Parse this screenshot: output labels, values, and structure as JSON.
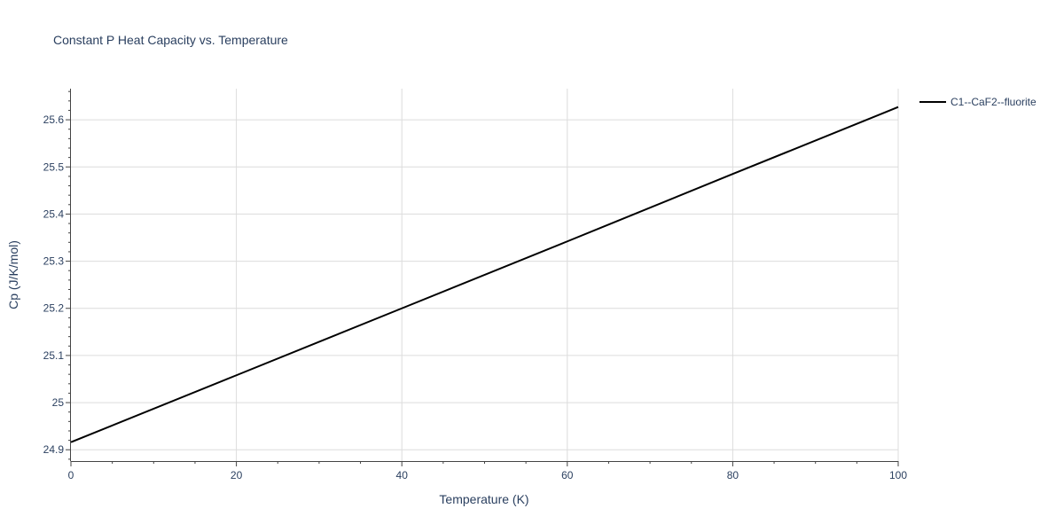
{
  "chart_data": {
    "type": "line",
    "title": "Constant P Heat Capacity vs. Temperature",
    "xlabel": "Temperature (K)",
    "ylabel": "Cp (J/K/mol)",
    "xlim": [
      0,
      100
    ],
    "ylim": [
      24.876,
      25.666
    ],
    "x_ticks": [
      0,
      20,
      40,
      60,
      80,
      100
    ],
    "x_tick_labels": [
      "0",
      "20",
      "40",
      "60",
      "80",
      "100"
    ],
    "y_ticks": [
      24.9,
      25.0,
      25.1,
      25.2,
      25.3,
      25.4,
      25.5,
      25.6
    ],
    "y_tick_labels": [
      "24.9",
      "25",
      "25.1",
      "25.2",
      "25.3",
      "25.4",
      "25.5",
      "25.6"
    ],
    "grid": true,
    "legend_position": "top-right",
    "series": [
      {
        "name": "C1--CaF2--fluorite",
        "color": "#000000",
        "x": [
          0,
          20,
          40,
          60,
          80,
          100
        ],
        "y": [
          24.916,
          25.058,
          25.2,
          25.342,
          25.485,
          25.627
        ]
      }
    ]
  },
  "colors": {
    "text": "#2a3f5f",
    "grid": "#dcdcdc",
    "axis": "#444444",
    "background": "#ffffff"
  }
}
